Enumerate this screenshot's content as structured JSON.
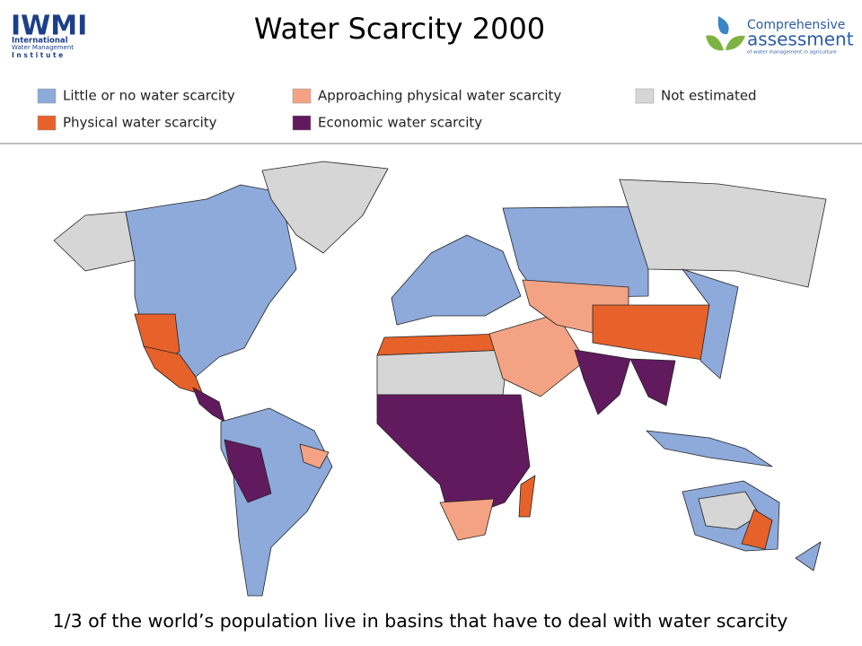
{
  "header": {
    "title": "Water Scarcity 2000",
    "left_logo": {
      "mark": "IWMI",
      "lines": [
        "International",
        "Water Management",
        "I n s t i t u t e"
      ]
    },
    "right_logo": {
      "lines": [
        "Comprehensive",
        "assessment",
        "of water management in agriculture"
      ]
    }
  },
  "legend": {
    "items": [
      {
        "label": "Little or no water scarcity",
        "color": "#8eaadb"
      },
      {
        "label": "Physical water scarcity",
        "color": "#e6622a"
      },
      {
        "label": "Approaching physical water scarcity",
        "color": "#f3a383"
      },
      {
        "label": "Economic water scarcity",
        "color": "#611a5e"
      },
      {
        "label": "Not estimated",
        "color": "#d6d6d6"
      }
    ]
  },
  "caption": "1/3 of the world’s population live in basins that have to deal with water scarcity"
}
